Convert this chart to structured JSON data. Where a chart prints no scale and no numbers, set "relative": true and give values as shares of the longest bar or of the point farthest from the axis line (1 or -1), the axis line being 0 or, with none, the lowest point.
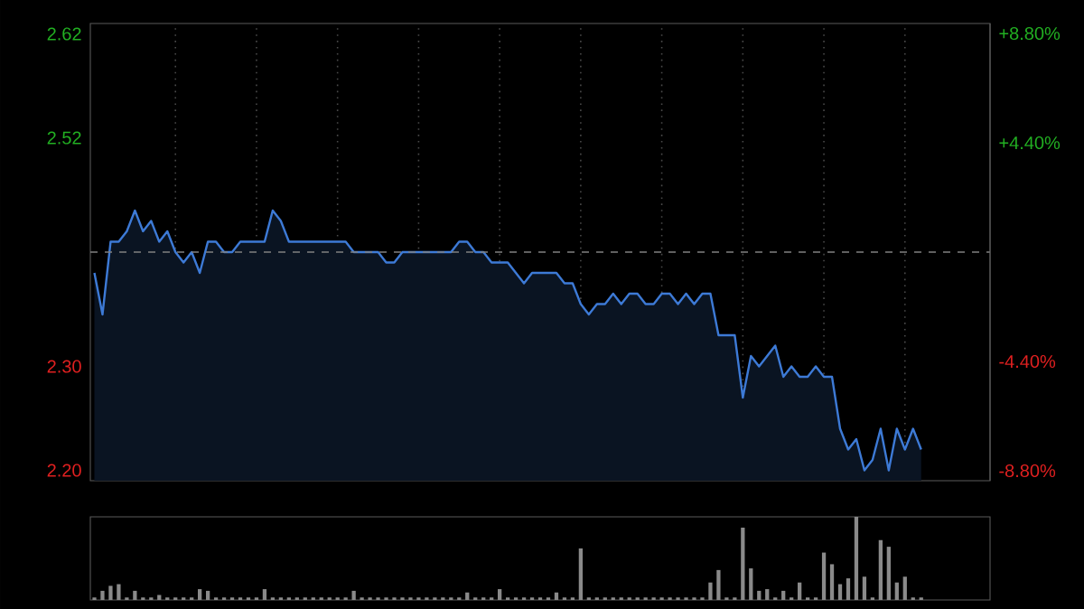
{
  "chart_data": [
    {
      "type": "area",
      "categories": [
        null,
        null,
        null,
        null,
        null,
        null,
        null,
        null,
        null,
        null,
        null,
        null,
        null,
        null,
        null,
        null,
        null,
        null,
        null,
        null,
        null,
        null,
        null,
        null,
        null,
        null,
        null,
        null,
        null,
        null,
        null,
        null,
        null,
        null,
        null,
        null,
        null,
        null,
        null,
        null,
        null,
        null,
        null,
        null,
        null,
        null,
        null,
        null,
        null,
        null,
        null,
        null,
        null,
        null,
        null,
        null,
        null,
        null,
        null,
        null,
        null,
        null,
        null,
        null,
        null,
        null,
        null,
        null,
        null,
        null,
        null,
        null,
        null,
        null,
        null,
        null,
        null,
        null,
        null,
        null,
        null,
        null,
        null,
        null,
        null,
        null,
        null,
        null,
        null,
        null,
        null,
        null,
        null,
        null,
        null,
        null,
        null,
        null,
        null,
        null,
        null,
        null,
        null,
        null,
        null,
        null,
        null,
        null,
        null,
        null,
        null
      ],
      "series": [
        {
          "color": "#3d7ad6",
          "values": [
            2.39,
            2.35,
            2.42,
            2.42,
            2.43,
            2.45,
            2.43,
            2.44,
            2.42,
            2.43,
            2.41,
            2.4,
            2.41,
            2.39,
            2.42,
            2.42,
            2.41,
            2.41,
            2.42,
            2.42,
            2.42,
            2.42,
            2.45,
            2.44,
            2.42,
            2.42,
            2.42,
            2.42,
            2.42,
            2.42,
            2.42,
            2.42,
            2.41,
            2.41,
            2.41,
            2.41,
            2.4,
            2.4,
            2.41,
            2.41,
            2.41,
            2.41,
            2.41,
            2.41,
            2.41,
            2.42,
            2.42,
            2.41,
            2.41,
            2.4,
            2.4,
            2.4,
            2.39,
            2.38,
            2.39,
            2.39,
            2.39,
            2.39,
            2.38,
            2.38,
            2.36,
            2.35,
            2.36,
            2.36,
            2.37,
            2.36,
            2.37,
            2.37,
            2.36,
            2.36,
            2.37,
            2.37,
            2.36,
            2.37,
            2.36,
            2.37,
            2.37,
            2.33,
            2.33,
            2.33,
            2.27,
            2.31,
            2.3,
            2.31,
            2.32,
            2.29,
            2.3,
            2.29,
            2.29,
            2.3,
            2.29,
            2.29,
            2.24,
            2.22,
            2.23,
            2.2,
            2.21,
            2.24,
            2.2,
            2.24,
            2.22,
            2.24,
            2.22,
            null,
            null,
            null,
            null,
            null,
            null,
            null,
            null
          ]
        }
      ],
      "ylim": [
        2.19,
        2.63
      ],
      "yticks": [
        {
          "value": 2.2,
          "label": "2.20"
        },
        {
          "value": 2.3,
          "label": "2.30"
        },
        {
          "value": 2.52,
          "label": "2.52"
        },
        {
          "value": 2.62,
          "label": "2.62"
        }
      ],
      "y2lim": [
        -9.2,
        9.2
      ],
      "y2ticks": [
        {
          "value": -8.8,
          "label": "-8.80%"
        },
        {
          "value": -4.4,
          "label": "-4.40%"
        },
        {
          "value": 4.4,
          "label": "+4.40%"
        },
        {
          "value": 8.8,
          "label": "+8.80%"
        }
      ],
      "ref_lines": [
        {
          "axis": "y",
          "value": 2.41,
          "color": "#808080",
          "line_style": "dashed"
        }
      ],
      "grid": "x",
      "tick_labels": "y"
    },
    {
      "type": "bar",
      "relative": true,
      "categories": [
        null,
        null,
        null,
        null,
        null,
        null,
        null,
        null,
        null,
        null,
        null,
        null,
        null,
        null,
        null,
        null,
        null,
        null,
        null,
        null,
        null,
        null,
        null,
        null,
        null,
        null,
        null,
        null,
        null,
        null,
        null,
        null,
        null,
        null,
        null,
        null,
        null,
        null,
        null,
        null,
        null,
        null,
        null,
        null,
        null,
        null,
        null,
        null,
        null,
        null,
        null,
        null,
        null,
        null,
        null,
        null,
        null,
        null,
        null,
        null,
        null,
        null,
        null,
        null,
        null,
        null,
        null,
        null,
        null,
        null,
        null,
        null,
        null,
        null,
        null,
        null,
        null,
        null,
        null,
        null,
        null,
        null,
        null,
        null,
        null,
        null,
        null,
        null,
        null,
        null,
        null,
        null,
        null,
        null,
        null,
        null,
        null,
        null,
        null,
        null,
        null,
        null,
        null,
        null,
        null,
        null,
        null,
        null,
        null,
        null,
        null
      ],
      "values": [
        0.03,
        0.11,
        0.17,
        0.19,
        0.03,
        0.11,
        0.03,
        0.03,
        0.06,
        0.03,
        0.03,
        0.03,
        0.03,
        0.13,
        0.11,
        0.03,
        0.03,
        0.03,
        0.03,
        0.03,
        0.03,
        0.13,
        0.03,
        0.03,
        0.03,
        0.03,
        0.03,
        0.03,
        0.03,
        0.03,
        0.03,
        0.03,
        0.11,
        0.03,
        0.03,
        0.03,
        0.03,
        0.03,
        0.03,
        0.03,
        0.03,
        0.03,
        0.03,
        0.03,
        0.03,
        0.03,
        0.09,
        0.03,
        0.03,
        0.03,
        0.13,
        0.03,
        0.03,
        0.03,
        0.03,
        0.03,
        0.03,
        0.09,
        0.03,
        0.03,
        0.62,
        0.03,
        0.03,
        0.03,
        0.03,
        0.03,
        0.03,
        0.03,
        0.03,
        0.03,
        0.03,
        0.03,
        0.03,
        0.03,
        0.03,
        0.03,
        0.21,
        0.36,
        0.03,
        0.03,
        0.87,
        0.38,
        0.11,
        0.13,
        0.03,
        0.11,
        0.03,
        0.21,
        0.03,
        0.03,
        0.57,
        0.43,
        0.19,
        0.26,
        1,
        0.28,
        0.03,
        0.72,
        0.64,
        0.21,
        0.28,
        0.03,
        0.03,
        null,
        null,
        null,
        null,
        null,
        null,
        null,
        null
      ],
      "color": "#8a8a8a",
      "tick_labels": false
    }
  ]
}
